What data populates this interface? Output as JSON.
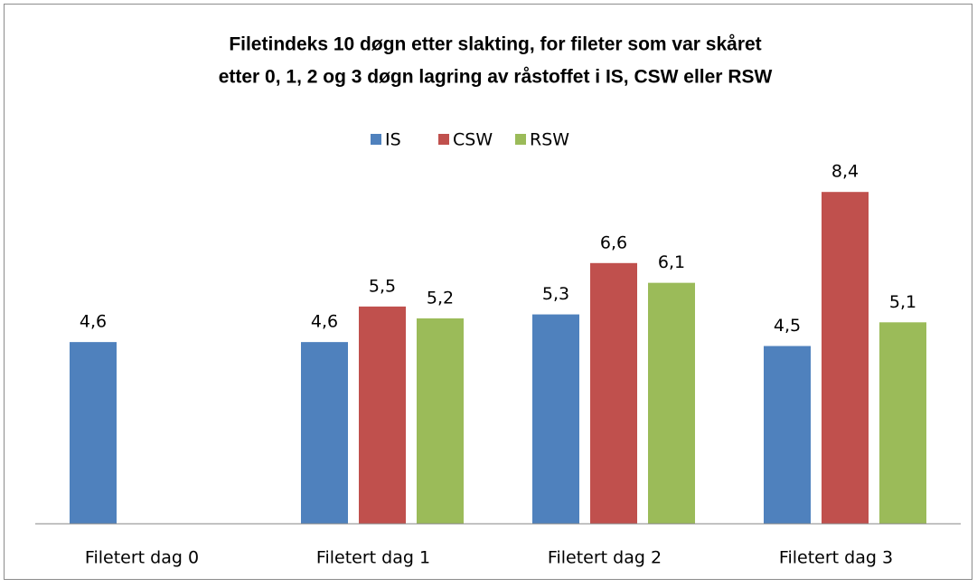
{
  "chart_data": {
    "type": "bar",
    "title": [
      "Filetindeks 10 døgn etter slakting, for fileter som var skåret",
      "etter 0, 1, 2 og 3 døgn lagring av råstoffet i IS, CSW eller RSW"
    ],
    "categories": [
      "Filetert dag 0",
      "Filetert dag 1",
      "Filetert dag 2",
      "Filetert dag 3"
    ],
    "series": [
      {
        "name": "IS",
        "color": "#4f81bd",
        "values": [
          4.6,
          4.6,
          5.3,
          4.5
        ],
        "value_labels": [
          "4,6",
          "4,6",
          "5,3",
          "4,5"
        ]
      },
      {
        "name": "CSW",
        "color": "#c0504d",
        "values": [
          null,
          5.5,
          6.6,
          8.4
        ],
        "value_labels": [
          null,
          "5,5",
          "6,6",
          "8,4"
        ]
      },
      {
        "name": "RSW",
        "color": "#9bbb59",
        "values": [
          null,
          5.2,
          6.1,
          5.1
        ],
        "value_labels": [
          null,
          "5,2",
          "6,1",
          "5,1"
        ]
      }
    ],
    "ylim": [
      0,
      9
    ],
    "legend": "top"
  }
}
